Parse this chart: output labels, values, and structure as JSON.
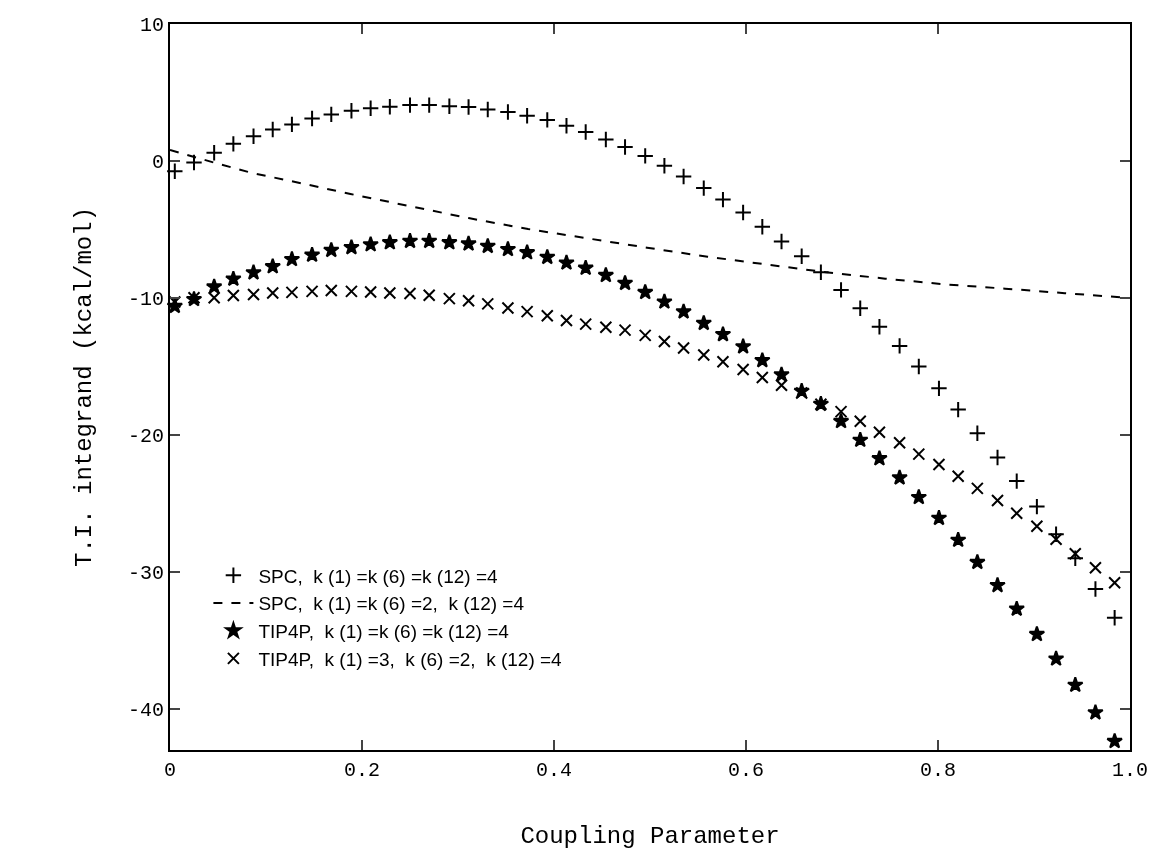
{
  "chart_data": {
    "type": "scatter",
    "xlabel": "Coupling Parameter",
    "ylabel": "T.I. integrand (kcal/mol)",
    "x": [
      0.005,
      0.025,
      0.046,
      0.066,
      0.087,
      0.107,
      0.127,
      0.148,
      0.168,
      0.189,
      0.209,
      0.229,
      0.25,
      0.27,
      0.291,
      0.311,
      0.331,
      0.352,
      0.372,
      0.393,
      0.413,
      0.433,
      0.454,
      0.474,
      0.495,
      0.515,
      0.535,
      0.556,
      0.576,
      0.597,
      0.617,
      0.637,
      0.658,
      0.678,
      0.699,
      0.719,
      0.739,
      0.76,
      0.78,
      0.801,
      0.821,
      0.841,
      0.862,
      0.882,
      0.903,
      0.923,
      0.943,
      0.964,
      0.984
    ],
    "series": [
      {
        "name": "SPC,  k (1) =k (6) =k (12) =4",
        "color": "#000000",
        "marker": "cross",
        "values": [
          -0.75,
          -0.11,
          0.6,
          1.25,
          1.8,
          2.3,
          2.67,
          3.1,
          3.4,
          3.67,
          3.85,
          3.96,
          4.08,
          4.08,
          4.0,
          3.94,
          3.76,
          3.58,
          3.3,
          3.0,
          2.57,
          2.12,
          1.57,
          1.02,
          0.37,
          -0.35,
          -1.13,
          -1.98,
          -2.82,
          -3.76,
          -4.8,
          -5.88,
          -6.96,
          -8.12,
          -9.41,
          -10.75,
          -12.1,
          -13.5,
          -15.0,
          -16.6,
          -18.15,
          -19.88,
          -21.65,
          -23.37,
          -25.23,
          -27.25,
          -29.0,
          -31.25,
          -33.34
        ]
      },
      {
        "name": "SPC,  k (1) =k (6) =2,  k (12) =4",
        "color": "#000000",
        "type": "line",
        "line_style": "dashed",
        "marker": "none",
        "x": [
          0,
          0.045,
          0.085,
          0.127,
          0.188,
          0.25,
          0.311,
          0.373,
          0.435,
          0.497,
          0.56,
          0.621,
          0.683,
          0.745,
          0.808,
          0.87,
          0.932,
          1.0
        ],
        "values": [
          0.8,
          -0.1,
          -0.87,
          -1.48,
          -2.41,
          -3.3,
          -4.17,
          -4.97,
          -5.65,
          -6.33,
          -6.99,
          -7.55,
          -8.12,
          -8.59,
          -9.01,
          -9.32,
          -9.65,
          -10.0
        ]
      },
      {
        "name": "TIP4P,  k (1) =k (6) =k (12) =4",
        "color": "#000000",
        "marker": "star",
        "values": [
          -10.6,
          -10.1,
          -9.18,
          -8.61,
          -8.15,
          -7.7,
          -7.18,
          -6.86,
          -6.51,
          -6.31,
          -6.1,
          -5.95,
          -5.85,
          -5.85,
          -5.95,
          -6.04,
          -6.22,
          -6.45,
          -6.68,
          -7.02,
          -7.43,
          -7.81,
          -8.34,
          -8.92,
          -9.58,
          -10.28,
          -11.0,
          -11.84,
          -12.66,
          -13.55,
          -14.56,
          -15.6,
          -16.8,
          -17.75,
          -19.0,
          -20.37,
          -21.72,
          -23.12,
          -24.55,
          -26.07,
          -27.67,
          -29.29,
          -30.98,
          -32.7,
          -34.55,
          -36.34,
          -38.26,
          -40.27,
          -42.36
        ]
      },
      {
        "name": "TIP4P,  k (1) =3,  k (6) =2,  k (12) =4",
        "color": "#000000",
        "marker": "x",
        "values": [
          -10.3,
          -9.98,
          -9.98,
          -9.82,
          -9.75,
          -9.64,
          -9.59,
          -9.52,
          -9.45,
          -9.52,
          -9.57,
          -9.64,
          -9.68,
          -9.8,
          -10.05,
          -10.2,
          -10.43,
          -10.73,
          -11.0,
          -11.3,
          -11.64,
          -11.91,
          -12.14,
          -12.35,
          -12.73,
          -13.18,
          -13.65,
          -14.16,
          -14.66,
          -15.22,
          -15.81,
          -16.37,
          -16.94,
          -17.76,
          -18.3,
          -19.0,
          -19.8,
          -20.57,
          -21.4,
          -22.16,
          -23.02,
          -23.9,
          -24.79,
          -25.72,
          -26.66,
          -27.62,
          -28.67,
          -29.7,
          -30.79
        ]
      }
    ],
    "xlim": [
      0,
      1
    ],
    "ylim": [
      -43,
      10
    ],
    "xticks": [
      0,
      0.2,
      0.4,
      0.6,
      0.8,
      {
        "value": 1,
        "label": "1.0"
      }
    ],
    "yticks": [
      -40,
      -30,
      -20,
      -10,
      0,
      10
    ],
    "legend": "bottom left"
  }
}
